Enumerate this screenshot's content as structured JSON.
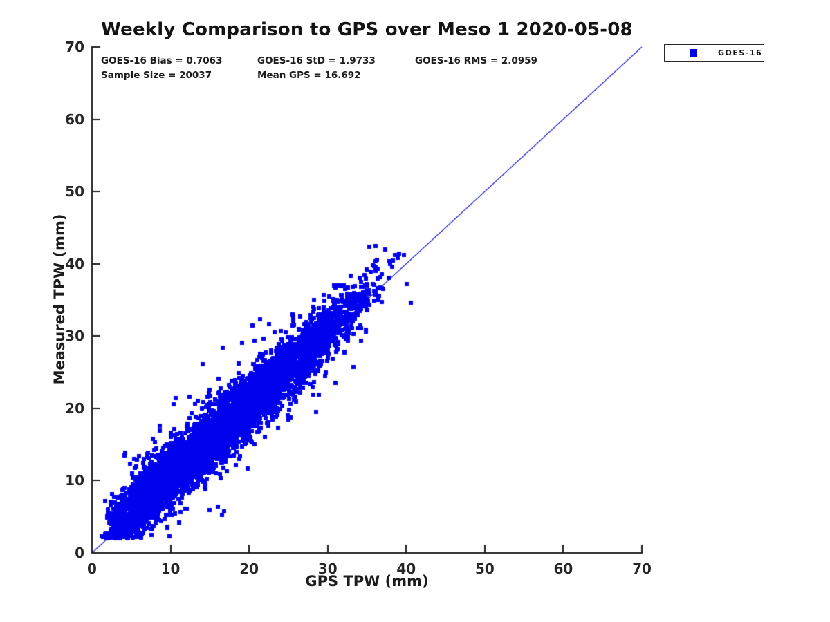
{
  "page": {
    "background": "#ffffff"
  },
  "chart_data": {
    "type": "scatter",
    "title": "Weekly Comparison to GPS over Meso 1 2020-05-08",
    "xlabel": "GPS TPW (mm)",
    "ylabel": "Measured TPW (mm)",
    "xlim": [
      0,
      70
    ],
    "ylim": [
      0,
      70
    ],
    "x_ticks": [
      0,
      10,
      20,
      30,
      40,
      50,
      60,
      70
    ],
    "y_ticks": [
      0,
      10,
      20,
      30,
      40,
      50,
      60,
      70
    ],
    "grid": false,
    "legend_position": "outside-top-right",
    "annotations": {
      "bias": "GOES-16 Bias = 0.7063",
      "std": "GOES-16 StD = 1.9733",
      "rms": "GOES-16 RMS = 2.0959",
      "sample_size": "Sample Size = 20037",
      "mean_gps": "Mean GPS = 16.692"
    },
    "reference_line": {
      "x": [
        0,
        70
      ],
      "y": [
        0,
        70
      ],
      "color": "#2323cd",
      "width": 1.2
    },
    "series": [
      {
        "name": "GOES-16",
        "marker": "square",
        "color": "#0101ee",
        "marker_size_px": 6,
        "stats": {
          "bias": 0.7063,
          "std": 1.9733,
          "rms": 2.0959,
          "sample_size": 20037,
          "mean_gps": 16.692
        },
        "x_range": [
          1.1,
          41.3
        ],
        "y_range": [
          2.2,
          42.5
        ],
        "point_generator": {
          "seed": 1337,
          "n": 6500,
          "beta_a": 2.2,
          "beta_b": 3.5,
          "fringe_fraction": 0.03,
          "fringe_scale": 2.3,
          "measured_min": 2.0,
          "measured_max": 42.5
        },
        "outlier_points": [
          [
            35.3,
            42.4
          ],
          [
            40.6,
            34.6
          ],
          [
            40.1,
            37.2
          ],
          [
            39.7,
            41.2
          ],
          [
            38.9,
            40.8
          ],
          [
            21.4,
            32.3
          ],
          [
            20.4,
            31.5
          ],
          [
            8.6,
            16.9
          ],
          [
            12.4,
            21.6
          ],
          [
            31.0,
            23.5
          ],
          [
            33.3,
            25.7
          ],
          [
            28.2,
            21.9
          ]
        ]
      }
    ],
    "axis_color": "#1f1f1f"
  }
}
